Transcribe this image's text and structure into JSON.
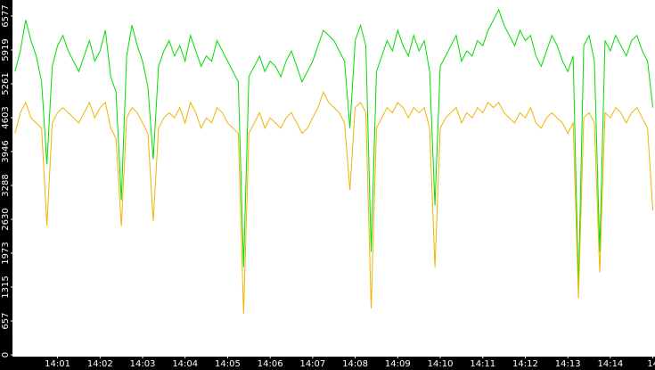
{
  "chart_data": {
    "type": "line",
    "x": [
      0,
      0.125,
      0.25,
      0.375,
      0.5,
      0.625,
      0.75,
      0.875,
      1,
      1.125,
      1.25,
      1.375,
      1.5,
      1.625,
      1.75,
      1.875,
      2,
      2.125,
      2.25,
      2.375,
      2.5,
      2.625,
      2.75,
      2.875,
      3,
      3.125,
      3.25,
      3.375,
      3.5,
      3.625,
      3.75,
      3.875,
      4,
      4.125,
      4.25,
      4.375,
      4.5,
      4.625,
      4.75,
      4.875,
      5,
      5.125,
      5.25,
      5.375,
      5.5,
      5.625,
      5.75,
      5.875,
      6,
      6.125,
      6.25,
      6.375,
      6.5,
      6.625,
      6.75,
      6.875,
      7,
      7.125,
      7.25,
      7.375,
      7.5,
      7.625,
      7.75,
      7.875,
      8,
      8.125,
      8.25,
      8.375,
      8.5,
      8.625,
      8.75,
      8.875,
      9,
      9.125,
      9.25,
      9.375,
      9.5,
      9.625,
      9.75,
      9.875,
      10,
      10.125,
      10.25,
      10.375,
      10.5,
      10.625,
      10.75,
      10.875,
      11,
      11.125,
      11.25,
      11.375,
      11.5,
      11.625,
      11.75,
      11.875,
      12,
      12.125,
      12.25,
      12.375,
      12.5,
      12.625,
      12.75,
      12.875,
      13,
      13.125,
      13.25,
      13.375,
      13.5,
      13.625,
      13.75,
      13.875,
      14,
      14.125,
      14.25,
      14.375,
      14.5,
      14.625,
      14.75,
      14.875,
      15
    ],
    "series": [
      {
        "color": "#00dd00",
        "values": [
          5500,
          5900,
          6500,
          6100,
          5800,
          5300,
          3700,
          5600,
          6000,
          6200,
          5900,
          5700,
          5500,
          5800,
          6100,
          5700,
          5900,
          6300,
          5400,
          5100,
          3000,
          5800,
          6400,
          6000,
          5700,
          5200,
          3800,
          5600,
          5900,
          6100,
          5800,
          6000,
          5700,
          6200,
          5900,
          5600,
          5800,
          5700,
          6100,
          5900,
          5700,
          5500,
          5300,
          1700,
          5400,
          5600,
          5800,
          5500,
          5700,
          5600,
          5400,
          5700,
          5900,
          5600,
          5300,
          5500,
          5700,
          6000,
          6300,
          6200,
          6100,
          5900,
          5700,
          4400,
          6100,
          6400,
          6000,
          2000,
          5500,
          5800,
          6100,
          5900,
          6300,
          6000,
          5800,
          6200,
          5900,
          6100,
          5500,
          2900,
          5600,
          5800,
          6000,
          6200,
          5700,
          5900,
          5800,
          6100,
          6000,
          6300,
          6500,
          6700,
          6400,
          6200,
          6000,
          6300,
          6100,
          6200,
          5800,
          5600,
          5900,
          6200,
          6000,
          5700,
          5500,
          5800,
          1300,
          6000,
          6200,
          5700,
          2000,
          6100,
          5900,
          6200,
          6000,
          5800,
          6100,
          6200,
          5900,
          5700,
          4800
        ]
      },
      {
        "color": "#f0b400",
        "values": [
          4300,
          4700,
          4900,
          4600,
          4500,
          4400,
          2500,
          4500,
          4700,
          4800,
          4700,
          4600,
          4500,
          4700,
          4900,
          4600,
          4800,
          4900,
          4400,
          4200,
          2500,
          4600,
          4800,
          4700,
          4500,
          4300,
          2600,
          4400,
          4600,
          4700,
          4600,
          4800,
          4500,
          4900,
          4700,
          4400,
          4600,
          4500,
          4800,
          4700,
          4500,
          4400,
          4300,
          800,
          4300,
          4500,
          4700,
          4400,
          4600,
          4500,
          4400,
          4600,
          4700,
          4500,
          4300,
          4400,
          4600,
          4800,
          5100,
          4900,
          4800,
          4700,
          4500,
          3200,
          4800,
          4900,
          4700,
          900,
          4400,
          4600,
          4800,
          4700,
          4900,
          4800,
          4600,
          4800,
          4700,
          4800,
          4400,
          1700,
          4400,
          4600,
          4700,
          4800,
          4500,
          4700,
          4600,
          4800,
          4700,
          4900,
          4800,
          4900,
          4700,
          4600,
          4500,
          4700,
          4600,
          4800,
          4500,
          4400,
          4600,
          4700,
          4600,
          4500,
          4300,
          4500,
          1100,
          4600,
          4700,
          4500,
          1600,
          4700,
          4600,
          4800,
          4700,
          4500,
          4700,
          4800,
          4600,
          4400,
          2800
        ]
      }
    ],
    "xlim": [
      -0.06,
      15.05
    ],
    "xticks": [
      {
        "value": 1,
        "label": "14:01"
      },
      {
        "value": 2,
        "label": "14:02"
      },
      {
        "value": 3,
        "label": "14:03"
      },
      {
        "value": 4,
        "label": "14:04"
      },
      {
        "value": 5,
        "label": "14:05"
      },
      {
        "value": 6,
        "label": "14:06"
      },
      {
        "value": 7,
        "label": "14:07"
      },
      {
        "value": 8,
        "label": "14:08"
      },
      {
        "value": 9,
        "label": "14:09"
      },
      {
        "value": 10,
        "label": "14:10"
      },
      {
        "value": 11,
        "label": "14:11"
      },
      {
        "value": 12,
        "label": "14:12"
      },
      {
        "value": 13,
        "label": "14:13"
      },
      {
        "value": 14,
        "label": "14:14"
      },
      {
        "value": 15,
        "label": "14"
      }
    ],
    "ylim": [
      0,
      6888
    ],
    "yticks": [
      0,
      657,
      1315,
      1973,
      2630,
      3288,
      3946,
      4603,
      5261,
      5919,
      6577
    ]
  }
}
